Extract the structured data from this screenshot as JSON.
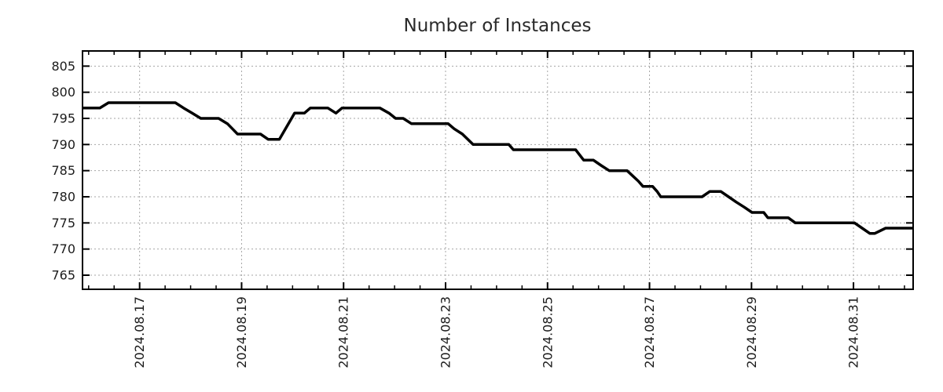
{
  "chart": {
    "title": "Number of Instances",
    "line_color": "#000000",
    "grid_color": "#a6a6a6",
    "border_color": "#000000",
    "background_color": "#ffffff"
  },
  "chart_data": {
    "type": "line",
    "title": "Number of Instances",
    "xlabel": "",
    "ylabel": "",
    "x_unit": "date, shown as August 2024 day number (decimal fraction = time of day; 32 = Sep 1)",
    "xlim": [
      15.88,
      32.17
    ],
    "ylim": [
      762.3,
      807.9
    ],
    "y_ticks": [
      765,
      770,
      775,
      780,
      785,
      790,
      795,
      800,
      805
    ],
    "x_major_ticks": [
      17,
      19,
      21,
      23,
      25,
      27,
      29,
      31
    ],
    "x_major_labels": [
      "2024.08.17",
      "2024.08.19",
      "2024.08.21",
      "2024.08.23",
      "2024.08.25",
      "2024.08.27",
      "2024.08.29",
      "2024.08.31"
    ],
    "x_minor_tick_step": 0.5,
    "grid": true,
    "legend_position": "none",
    "series": [
      {
        "name": "instances",
        "color": "#000000",
        "points": [
          [
            15.88,
            797
          ],
          [
            16.22,
            797
          ],
          [
            16.39,
            798
          ],
          [
            17.7,
            798
          ],
          [
            17.86,
            797
          ],
          [
            18.03,
            796
          ],
          [
            18.2,
            795
          ],
          [
            18.55,
            795
          ],
          [
            18.72,
            794
          ],
          [
            18.82,
            793
          ],
          [
            18.92,
            792
          ],
          [
            19.37,
            792
          ],
          [
            19.52,
            791
          ],
          [
            19.74,
            791
          ],
          [
            20.04,
            796
          ],
          [
            20.23,
            796
          ],
          [
            20.35,
            797
          ],
          [
            20.69,
            797
          ],
          [
            20.85,
            796
          ],
          [
            20.97,
            797
          ],
          [
            21.71,
            797
          ],
          [
            21.89,
            796
          ],
          [
            22.02,
            795
          ],
          [
            22.17,
            795
          ],
          [
            22.33,
            794
          ],
          [
            23.05,
            794
          ],
          [
            23.17,
            793
          ],
          [
            23.33,
            792
          ],
          [
            23.54,
            790
          ],
          [
            24.24,
            790
          ],
          [
            24.33,
            789
          ],
          [
            25.55,
            789
          ],
          [
            25.71,
            787
          ],
          [
            25.9,
            787
          ],
          [
            26.05,
            786
          ],
          [
            26.21,
            785
          ],
          [
            26.56,
            785
          ],
          [
            26.67,
            784
          ],
          [
            26.78,
            783
          ],
          [
            26.87,
            782
          ],
          [
            27.06,
            782
          ],
          [
            27.15,
            781
          ],
          [
            27.22,
            780
          ],
          [
            28.03,
            780
          ],
          [
            28.18,
            781
          ],
          [
            28.4,
            781
          ],
          [
            28.55,
            780
          ],
          [
            28.7,
            779
          ],
          [
            28.86,
            778
          ],
          [
            29.01,
            777
          ],
          [
            29.24,
            777
          ],
          [
            29.32,
            776
          ],
          [
            29.72,
            776
          ],
          [
            29.86,
            775
          ],
          [
            31.02,
            775
          ],
          [
            31.17,
            774
          ],
          [
            31.32,
            773
          ],
          [
            31.42,
            773
          ],
          [
            31.63,
            774
          ],
          [
            32.17,
            774
          ]
        ]
      }
    ]
  }
}
